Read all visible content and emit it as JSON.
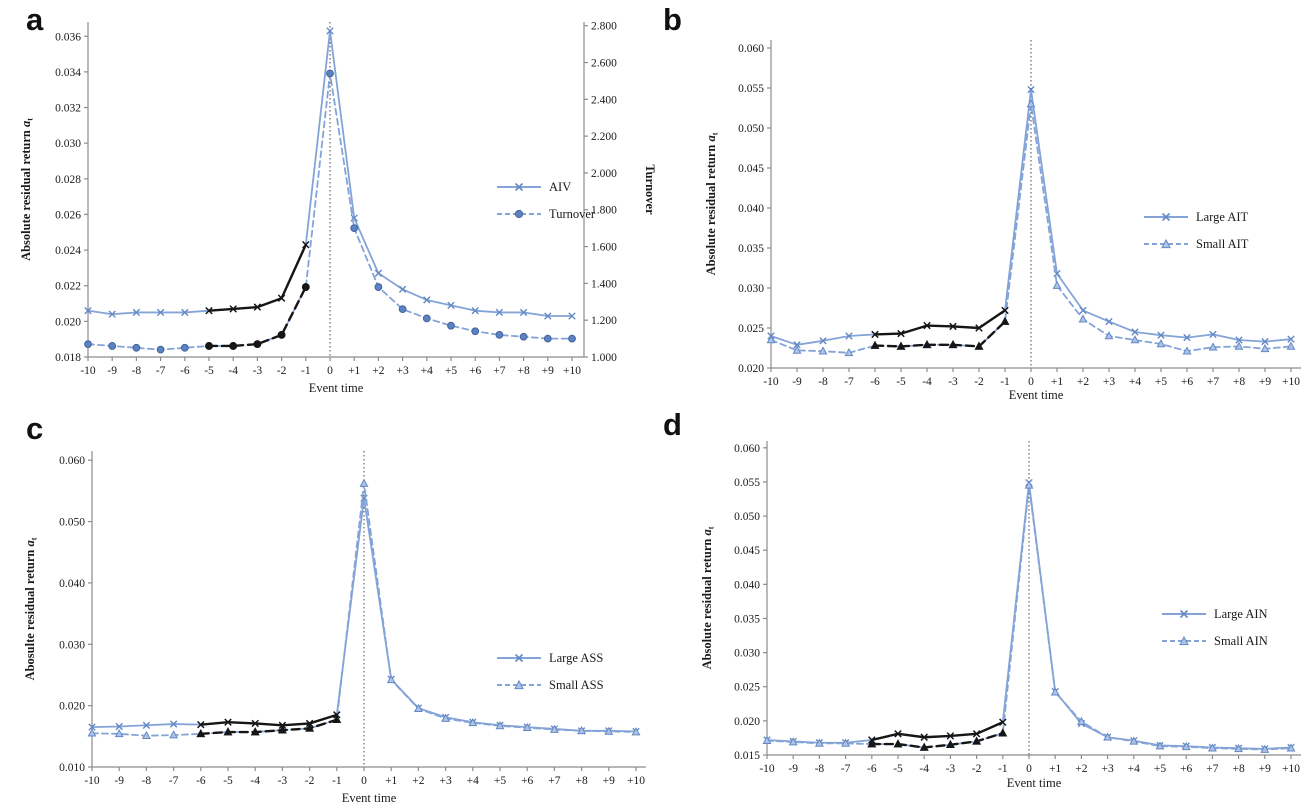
{
  "colors": {
    "line_blue": "#84a4d8",
    "marker_blue": "#6388c4",
    "circle_fill_blue": "#5b82c2",
    "overlay_black": "#161616",
    "axis_gray": "#8c8c8c",
    "text_black": "#1a1a1a",
    "zero_line": "#444444"
  },
  "chart_data": [
    {
      "id": "a",
      "panel_label": "a",
      "type": "line",
      "xlabel": "Event time",
      "ylabel": "Absolute residual return",
      "ylabel_var": "a",
      "ylabel_sub": "t",
      "ylabel_right": "Turnover",
      "x": [
        -10,
        -9,
        -8,
        -7,
        -6,
        -5,
        -4,
        -3,
        -2,
        -1,
        0,
        1,
        2,
        3,
        4,
        5,
        6,
        7,
        8,
        9,
        10
      ],
      "xtick_labels": [
        "-10",
        "-9",
        "-8",
        "-7",
        "-6",
        "-5",
        "-4",
        "-3",
        "-2",
        "-1",
        "0",
        "+1",
        "+2",
        "+3",
        "+4",
        "+5",
        "+6",
        "+7",
        "+8",
        "+9",
        "+10"
      ],
      "ylim": [
        0.018,
        0.0368
      ],
      "yticks": [
        0.018,
        0.02,
        0.022,
        0.024,
        0.026,
        0.028,
        0.03,
        0.032,
        0.034,
        0.036
      ],
      "ytick_labels": [
        "0.018",
        "0.020",
        "0.022",
        "0.024",
        "0.026",
        "0.028",
        "0.030",
        "0.032",
        "0.034",
        "0.036"
      ],
      "ylim_right": [
        1.0,
        2.82
      ],
      "yticks_right": [
        1.0,
        1.2,
        1.4,
        1.6,
        1.8,
        2.0,
        2.2,
        2.4,
        2.6,
        2.8
      ],
      "ytick_labels_right": [
        "1.000",
        "1.200",
        "1.400",
        "1.600",
        "1.800",
        "2.000",
        "2.200",
        "2.400",
        "2.600",
        "2.800"
      ],
      "zero_line_x": 0,
      "geom": {
        "l": 88,
        "r": 584,
        "t": 22,
        "b": 357,
        "xpad": 12,
        "ylab_x": 30,
        "ylab_right_x": 646,
        "xlab_y": 392
      },
      "series": [
        {
          "name": "AIV",
          "axis": "left",
          "style": "solid",
          "marker": "x",
          "color": "blue",
          "x0": -10,
          "values": [
            0.0206,
            0.0204,
            0.0205,
            0.0205,
            0.0205,
            0.0206,
            0.0207,
            0.0208,
            0.0213,
            0.0243,
            0.0363,
            0.0258,
            0.0227,
            0.0218,
            0.0212,
            0.0209,
            0.0206,
            0.0205,
            0.0205,
            0.0203,
            0.0203
          ]
        },
        {
          "name": "Turnover",
          "axis": "right",
          "style": "dashed",
          "marker": "circle",
          "color": "blue",
          "x0": -10,
          "values": [
            1.07,
            1.06,
            1.05,
            1.04,
            1.05,
            1.06,
            1.06,
            1.07,
            1.12,
            1.38,
            2.54,
            1.7,
            1.38,
            1.26,
            1.21,
            1.17,
            1.14,
            1.12,
            1.11,
            1.1,
            1.1
          ]
        },
        {
          "name": "AIV pre-event (black)",
          "axis": "left",
          "style": "solid",
          "marker": "x",
          "color": "black",
          "x0": -5,
          "values": [
            0.0206,
            0.0207,
            0.0208,
            0.0213,
            0.0243
          ]
        },
        {
          "name": "Turnover pre-event (black)",
          "axis": "right",
          "style": "dashed",
          "marker": "circle",
          "color": "black",
          "x0": -5,
          "values": [
            1.06,
            1.06,
            1.07,
            1.12,
            1.38
          ]
        }
      ]
    },
    {
      "id": "b",
      "panel_label": "b",
      "type": "line",
      "xlabel": "Event time",
      "ylabel": "Absolute residual return",
      "ylabel_var": "a",
      "ylabel_sub": "t",
      "x": [
        -10,
        -9,
        -8,
        -7,
        -6,
        -5,
        -4,
        -3,
        -2,
        -1,
        0,
        1,
        2,
        3,
        4,
        5,
        6,
        7,
        8,
        9,
        10
      ],
      "xtick_labels": [
        "-10",
        "-9",
        "-8",
        "-7",
        "-6",
        "-5",
        "-4",
        "-3",
        "-2",
        "-1",
        "0",
        "+1",
        "+2",
        "+3",
        "+4",
        "+5",
        "+6",
        "+7",
        "+8",
        "+9",
        "+10"
      ],
      "ylim": [
        0.02,
        0.061
      ],
      "yticks": [
        0.02,
        0.025,
        0.03,
        0.035,
        0.04,
        0.045,
        0.05,
        0.055,
        0.06
      ],
      "ytick_labels": [
        "0.020",
        "0.025",
        "0.030",
        "0.035",
        "0.040",
        "0.045",
        "0.050",
        "0.055",
        "0.060"
      ],
      "zero_line_x": 0,
      "geom": {
        "l": 116,
        "r": 646,
        "t": 40,
        "b": 368,
        "xpad": 10,
        "ylab_x": 60,
        "xlab_y": 399
      },
      "series": [
        {
          "name": "Large AIT",
          "axis": "left",
          "style": "solid",
          "marker": "x",
          "color": "blue",
          "x0": -10,
          "values": [
            0.024,
            0.0229,
            0.0234,
            0.024,
            0.0242,
            0.0243,
            0.0253,
            0.0252,
            0.025,
            0.0272,
            0.0548,
            0.0318,
            0.0272,
            0.0258,
            0.0245,
            0.0241,
            0.0238,
            0.0242,
            0.0235,
            0.0233,
            0.0236
          ]
        },
        {
          "name": "Small AIT",
          "axis": "left",
          "style": "dashed",
          "marker": "tri",
          "color": "blue",
          "x0": -10,
          "values": [
            0.0235,
            0.0222,
            0.0221,
            0.0219,
            0.0228,
            0.0227,
            0.0229,
            0.0229,
            0.0227,
            0.0258,
            0.053,
            0.0303,
            0.0261,
            0.024,
            0.0235,
            0.023,
            0.0221,
            0.0226,
            0.0227,
            0.0224,
            0.0227
          ]
        },
        {
          "name": "Large AIT pre-event (black)",
          "axis": "left",
          "style": "solid",
          "marker": "x",
          "color": "black",
          "x0": -6,
          "values": [
            0.0242,
            0.0243,
            0.0253,
            0.0252,
            0.025,
            0.0272
          ]
        },
        {
          "name": "Small AIT pre-event (black)",
          "axis": "left",
          "style": "dashed",
          "marker": "tri",
          "color": "black",
          "x0": -6,
          "values": [
            0.0228,
            0.0227,
            0.0229,
            0.0229,
            0.0227,
            0.0258
          ]
        }
      ]
    },
    {
      "id": "c",
      "panel_label": "c",
      "type": "line",
      "xlabel": "Event time",
      "ylabel": "Abosulte residual return",
      "ylabel_var": "a",
      "ylabel_sub": "t",
      "x": [
        -10,
        -9,
        -8,
        -7,
        -6,
        -5,
        -4,
        -3,
        -2,
        -1,
        0,
        1,
        2,
        3,
        4,
        5,
        6,
        7,
        8,
        9,
        10
      ],
      "xtick_labels": [
        "-10",
        "-9",
        "-8",
        "-7",
        "-6",
        "-5",
        "-4",
        "-3",
        "-2",
        "-1",
        "0",
        "+1",
        "+2",
        "+3",
        "+4",
        "+5",
        "+6",
        "+7",
        "+8",
        "+9",
        "+10"
      ],
      "ylim": [
        0.01,
        0.0615
      ],
      "yticks": [
        0.01,
        0.02,
        0.03,
        0.04,
        0.05,
        0.06
      ],
      "ytick_labels": [
        "0.010",
        "0.020",
        "0.030",
        "0.040",
        "0.050",
        "0.060"
      ],
      "zero_line_x": 0,
      "geom": {
        "l": 92,
        "r": 646,
        "t": 46,
        "b": 362,
        "xpad": 10,
        "ylab_x": 34,
        "xlab_y": 397
      },
      "series": [
        {
          "name": "Large ASS",
          "axis": "left",
          "style": "solid",
          "marker": "x",
          "color": "blue",
          "x0": -10,
          "values": [
            0.0165,
            0.0166,
            0.0168,
            0.017,
            0.0169,
            0.0173,
            0.0171,
            0.0168,
            0.0171,
            0.0185,
            0.0538,
            0.0243,
            0.0196,
            0.0181,
            0.0173,
            0.0168,
            0.0165,
            0.0162,
            0.0159,
            0.0159,
            0.0158
          ]
        },
        {
          "name": "Small ASS",
          "axis": "left",
          "style": "dashed",
          "marker": "tri",
          "color": "blue",
          "x0": -10,
          "values": [
            0.0155,
            0.0154,
            0.0151,
            0.0152,
            0.0154,
            0.0157,
            0.0157,
            0.016,
            0.0163,
            0.0177,
            0.0562,
            0.0242,
            0.0195,
            0.0179,
            0.0172,
            0.0167,
            0.0164,
            0.0161,
            0.0159,
            0.0158,
            0.0157
          ]
        },
        {
          "name": "Large ASS pre-event (black)",
          "axis": "left",
          "style": "solid",
          "marker": "x",
          "color": "black",
          "x0": -6,
          "values": [
            0.0169,
            0.0173,
            0.0171,
            0.0168,
            0.0171,
            0.0185
          ]
        },
        {
          "name": "Small ASS pre-event (black)",
          "axis": "left",
          "style": "dashed",
          "marker": "tri",
          "color": "black",
          "x0": -6,
          "values": [
            0.0154,
            0.0157,
            0.0157,
            0.016,
            0.0163,
            0.0177
          ]
        }
      ]
    },
    {
      "id": "d",
      "panel_label": "d",
      "type": "line",
      "xlabel": "Event time",
      "ylabel": "Absolute residual return",
      "ylabel_var": "a",
      "ylabel_sub": "t",
      "x": [
        -10,
        -9,
        -8,
        -7,
        -6,
        -5,
        -4,
        -3,
        -2,
        -1,
        0,
        1,
        2,
        3,
        4,
        5,
        6,
        7,
        8,
        9,
        10
      ],
      "xtick_labels": [
        "-10",
        "-9",
        "-8",
        "-7",
        "-6",
        "-5",
        "-4",
        "-3",
        "-2",
        "-1",
        "0",
        "+1",
        "+2",
        "+3",
        "+4",
        "+5",
        "+6",
        "+7",
        "+8",
        "+9",
        "+10"
      ],
      "ylim": [
        0.015,
        0.061
      ],
      "yticks": [
        0.015,
        0.02,
        0.025,
        0.03,
        0.035,
        0.04,
        0.045,
        0.05,
        0.055,
        0.06
      ],
      "ytick_labels": [
        "0.015",
        "0.020",
        "0.025",
        "0.030",
        "0.035",
        "0.040",
        "0.045",
        "0.050",
        "0.055",
        "0.060"
      ],
      "zero_line_x": 0,
      "geom": {
        "l": 112,
        "r": 646,
        "t": 36,
        "b": 350,
        "xpad": 10,
        "ylab_x": 56,
        "xlab_y": 382
      },
      "series": [
        {
          "name": "Large AIN",
          "axis": "left",
          "style": "solid",
          "marker": "x",
          "color": "blue",
          "x0": -10,
          "values": [
            0.0172,
            0.017,
            0.0168,
            0.0168,
            0.0172,
            0.0181,
            0.0176,
            0.0178,
            0.0181,
            0.0198,
            0.0549,
            0.0243,
            0.0196,
            0.0176,
            0.0171,
            0.0164,
            0.0163,
            0.0161,
            0.016,
            0.0159,
            0.0161
          ]
        },
        {
          "name": "Small AIN",
          "axis": "left",
          "style": "dashed",
          "marker": "tri",
          "color": "blue",
          "x0": -10,
          "values": [
            0.0171,
            0.0169,
            0.0167,
            0.0167,
            0.0166,
            0.0166,
            0.0161,
            0.0165,
            0.017,
            0.0182,
            0.0545,
            0.0242,
            0.0199,
            0.0176,
            0.017,
            0.0163,
            0.0162,
            0.016,
            0.0159,
            0.0158,
            0.016
          ]
        },
        {
          "name": "Large AIN pre-event (black)",
          "axis": "left",
          "style": "solid",
          "marker": "x",
          "color": "black",
          "x0": -6,
          "values": [
            0.0172,
            0.0181,
            0.0176,
            0.0178,
            0.0181,
            0.0198
          ]
        },
        {
          "name": "Small AIN pre-event (black)",
          "axis": "left",
          "style": "dashed",
          "marker": "tri",
          "color": "black",
          "x0": -6,
          "values": [
            0.0166,
            0.0166,
            0.0161,
            0.0165,
            0.017,
            0.0182
          ]
        }
      ]
    }
  ]
}
